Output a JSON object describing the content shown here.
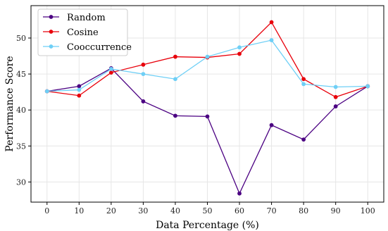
{
  "chart_data": {
    "type": "line",
    "title": "",
    "xlabel": "Data Percentage (%)",
    "ylabel": "Performance Score",
    "x": [
      0,
      10,
      20,
      30,
      40,
      50,
      60,
      70,
      80,
      90,
      100
    ],
    "xlim": [
      -5,
      105
    ],
    "ylim": [
      27.2,
      54.5
    ],
    "xticks": [
      0,
      10,
      20,
      30,
      40,
      50,
      60,
      70,
      80,
      90,
      100
    ],
    "yticks": [
      30,
      35,
      40,
      45,
      50
    ],
    "grid": true,
    "legend_position": "top-left",
    "series": [
      {
        "name": "Random",
        "color": "#4b0082",
        "values": [
          42.6,
          43.3,
          45.8,
          41.2,
          39.2,
          39.1,
          28.4,
          37.9,
          35.9,
          40.5,
          43.3
        ]
      },
      {
        "name": "Cosine",
        "color": "#e8000b",
        "values": [
          42.6,
          42.0,
          45.2,
          46.3,
          47.4,
          47.3,
          47.8,
          52.2,
          44.3,
          41.8,
          43.3
        ]
      },
      {
        "name": "Cooccurrence",
        "color": "#6ecff6",
        "values": [
          42.6,
          42.8,
          45.7,
          45.0,
          44.3,
          47.4,
          48.7,
          49.7,
          43.6,
          43.2,
          43.3
        ]
      }
    ]
  }
}
